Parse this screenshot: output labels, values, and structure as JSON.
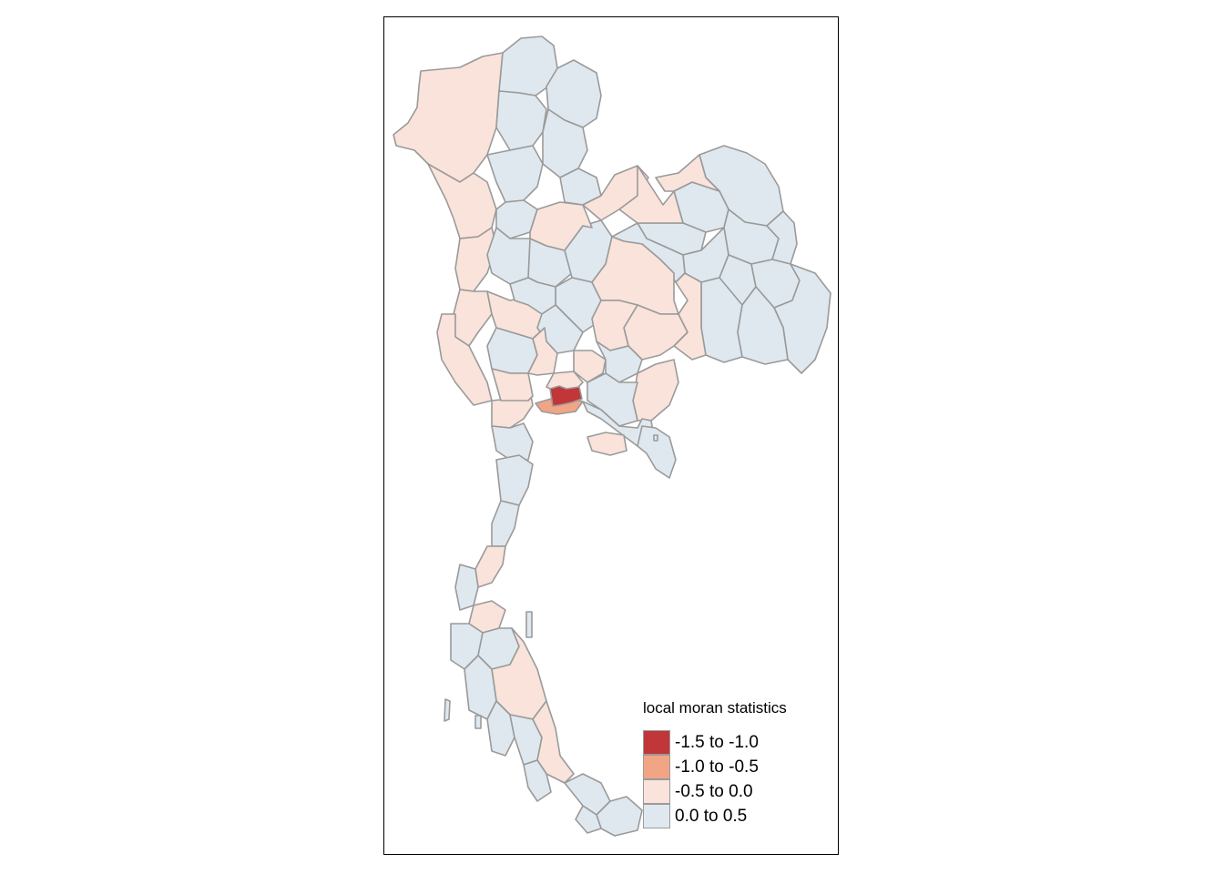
{
  "legend": {
    "title": "local moran statistics",
    "classes": [
      {
        "label": "-1.5 to -1.0",
        "color": "#c13639"
      },
      {
        "label": "-1.0 to -0.5",
        "color": "#f1a585"
      },
      {
        "label": "-0.5 to 0.0",
        "color": "#f9e3da"
      },
      {
        "label": "0.0 to 0.5",
        "color": "#dfe8ef"
      }
    ]
  },
  "colors": {
    "border": "#9a9a9a",
    "frame": "#000000",
    "background": "#ffffff"
  }
}
